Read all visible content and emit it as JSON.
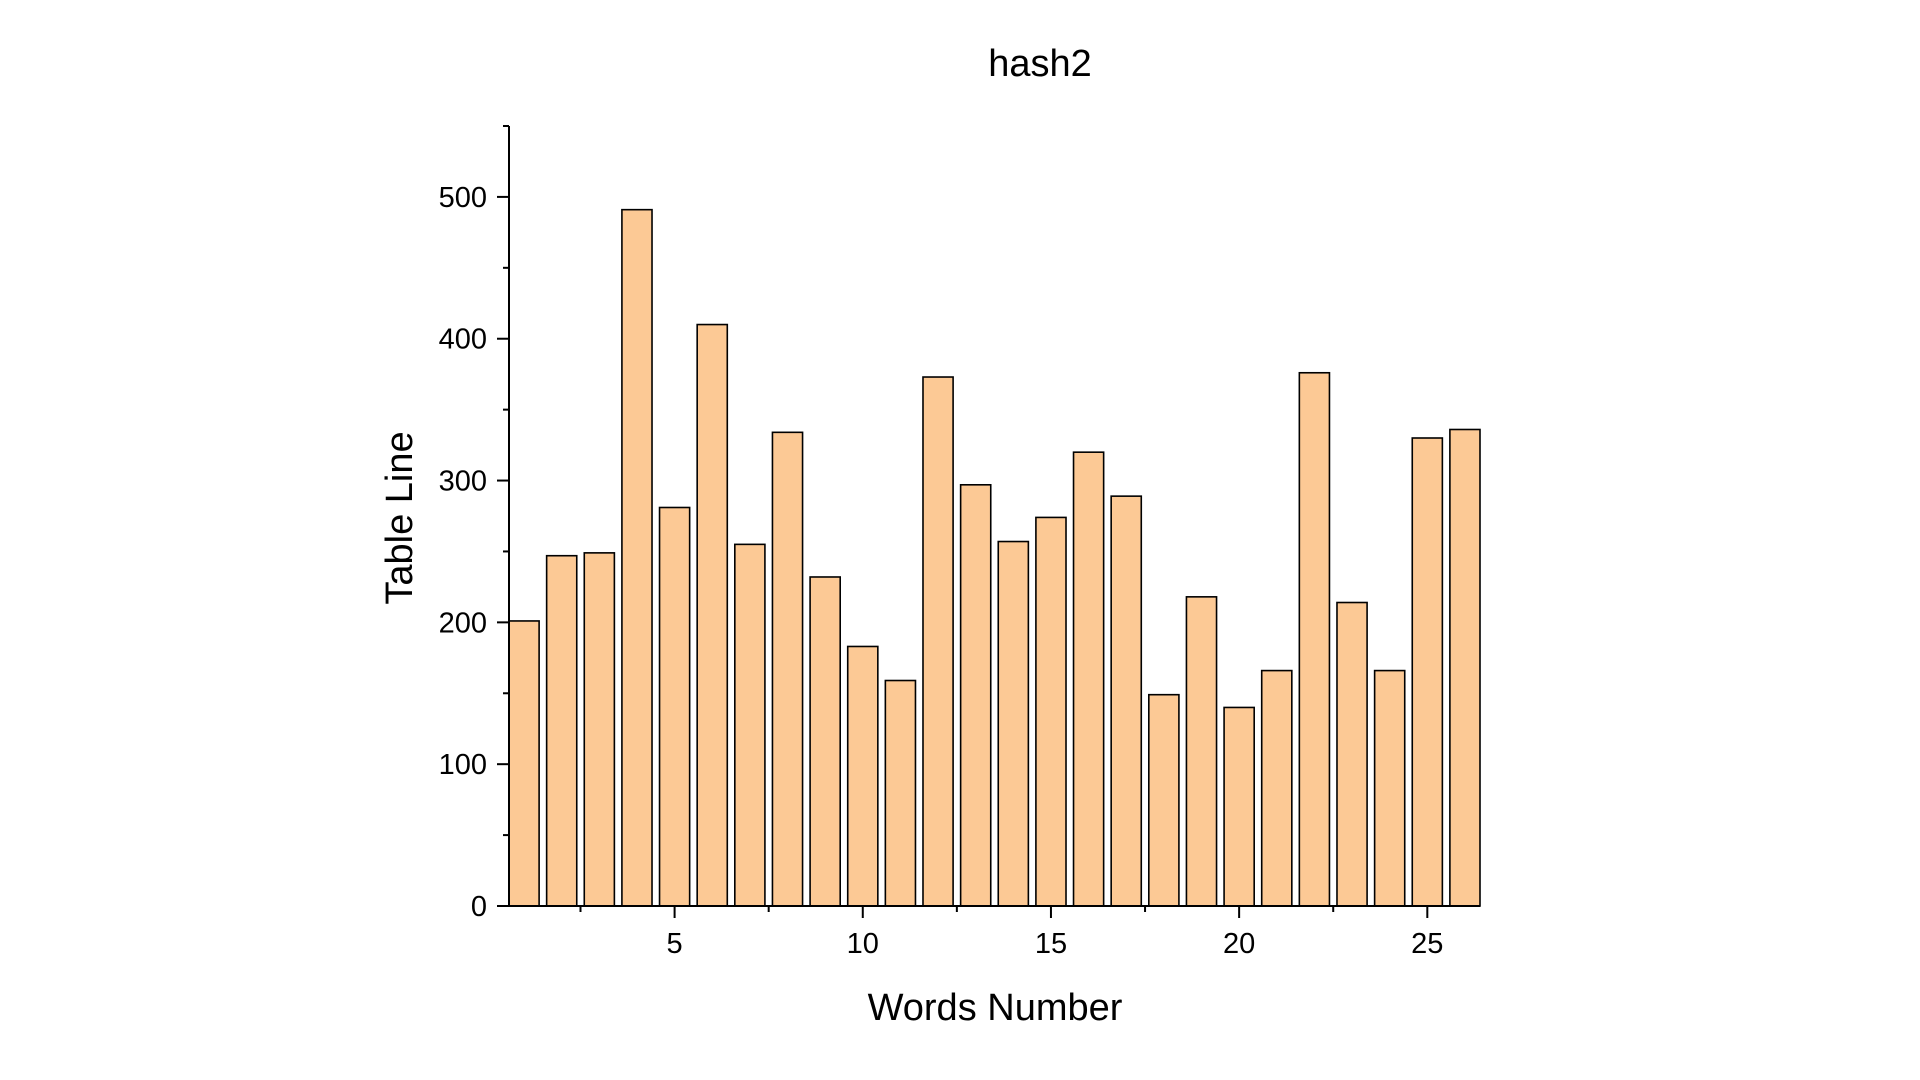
{
  "chart_data": {
    "type": "bar",
    "title": "hash2",
    "xlabel": "Words Number",
    "ylabel": "Table Line",
    "x": [
      1,
      2,
      3,
      4,
      5,
      6,
      7,
      8,
      9,
      10,
      11,
      12,
      13,
      14,
      15,
      16,
      17,
      18,
      19,
      20,
      21,
      22,
      23,
      24,
      25,
      26
    ],
    "values": [
      201,
      247,
      249,
      491,
      281,
      410,
      255,
      334,
      232,
      183,
      159,
      373,
      297,
      257,
      274,
      320,
      289,
      149,
      218,
      140,
      166,
      376,
      214,
      166,
      330,
      336
    ],
    "xlim": [
      0.6,
      26.4
    ],
    "ylim": [
      0,
      550
    ],
    "x_ticks": [
      5,
      10,
      15,
      20,
      25
    ],
    "y_ticks": [
      0,
      100,
      200,
      300,
      400,
      500
    ],
    "grid": false,
    "colors": {
      "bar_fill": "#FCC995",
      "bar_stroke": "#000000",
      "axis": "#000000"
    }
  }
}
